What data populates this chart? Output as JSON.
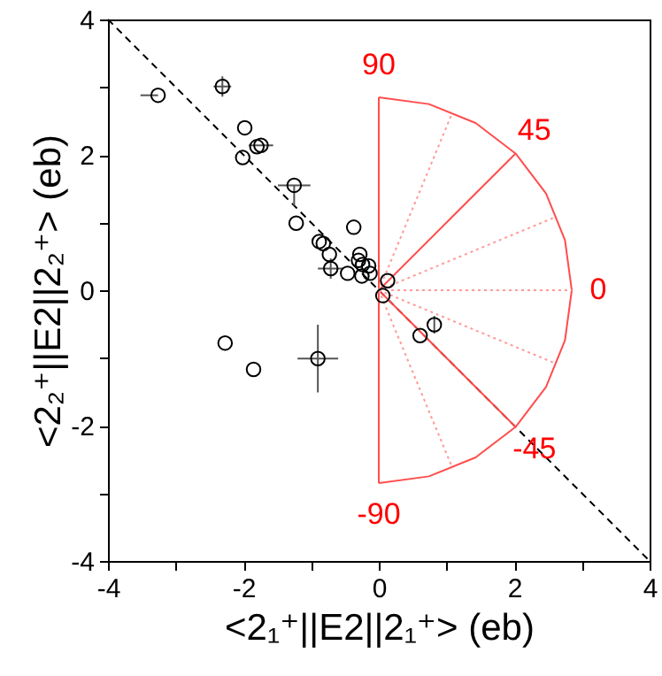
{
  "chart_data": {
    "type": "scatter",
    "xlabel": "<2₁⁺||E2||2₁⁺> (eb)",
    "ylabel": "<2₂⁺||E2||2₂⁺> (eb)",
    "xlim": [
      -4,
      4
    ],
    "ylim": [
      -4,
      4
    ],
    "xticks": [
      -4,
      {
        "value": -3,
        "label": null
      },
      -2,
      {
        "value": -1,
        "label": null
      },
      0,
      {
        "value": 1,
        "label": null
      },
      2,
      {
        "value": 3,
        "label": null
      },
      4
    ],
    "yticks": [
      -4,
      {
        "value": -3,
        "label": null
      },
      -2,
      {
        "value": -1,
        "label": null
      },
      0,
      {
        "value": 1,
        "label": null
      },
      2,
      {
        "value": 3,
        "label": null
      },
      4
    ],
    "annotations": [
      {
        "text": "90",
        "x": 0,
        "y": 2.85
      },
      {
        "text": "45",
        "x": 2.02,
        "y": 2.02
      },
      {
        "text": "0",
        "x": 2.85,
        "y": 0
      },
      {
        "text": "-45",
        "x": 2.02,
        "y": -2.02
      },
      {
        "text": "-90",
        "x": 0,
        "y": -2.85
      }
    ],
    "series": [
      {
        "type": "line",
        "color": "#000000",
        "line_style": "dashed",
        "x": [
          -4,
          4
        ],
        "values": [
          4,
          -4
        ]
      },
      {
        "type": "line",
        "color": "#ff4d4d",
        "line_style": "solid",
        "x": [
          0,
          0.74,
          1.43,
          2.02,
          2.47,
          2.75,
          2.85,
          2.75,
          2.47,
          2.02,
          1.43,
          0.74,
          0
        ],
        "values": [
          2.85,
          2.75,
          2.47,
          2.02,
          1.43,
          0.74,
          0,
          -0.74,
          -1.43,
          -2.02,
          -2.47,
          -2.75,
          -2.85
        ]
      },
      {
        "type": "line",
        "color": "#ff4d4d",
        "line_style": "solid",
        "x": [
          0,
          0
        ],
        "values": [
          2.85,
          -2.85
        ]
      },
      {
        "type": "line",
        "color": "#ff4d4d",
        "line_style": "solid",
        "x": [
          0,
          2.02
        ],
        "values": [
          0,
          2.02
        ]
      },
      {
        "type": "line",
        "color": "#ff4d4d",
        "line_style": "solid",
        "x": [
          0,
          2.02
        ],
        "values": [
          0,
          -2.02
        ]
      },
      {
        "type": "line",
        "color": "#ff9999",
        "line_style": "dotted",
        "x": [
          0,
          1.09
        ],
        "values": [
          0,
          2.63
        ]
      },
      {
        "type": "line",
        "color": "#ff9999",
        "line_style": "dotted",
        "x": [
          0,
          2.63
        ],
        "values": [
          0,
          1.09
        ]
      },
      {
        "type": "line",
        "color": "#ff9999",
        "line_style": "dotted",
        "x": [
          0,
          2.85
        ],
        "values": [
          0,
          0
        ]
      },
      {
        "type": "line",
        "color": "#ff9999",
        "line_style": "dotted",
        "x": [
          0,
          2.63
        ],
        "values": [
          0,
          -1.09
        ]
      },
      {
        "type": "line",
        "color": "#ff9999",
        "line_style": "dotted",
        "x": [
          0,
          1.09
        ],
        "values": [
          0,
          -2.63
        ]
      },
      {
        "color": "#000000",
        "marker": "circle",
        "x": [
          -3.26,
          -2.31,
          -1.98,
          -2.01,
          -1.74,
          -1.8,
          -1.25,
          -1.22,
          -0.88,
          -0.82,
          -0.73,
          -0.71,
          -0.37,
          -0.46,
          -0.28,
          -0.3,
          -0.24,
          -0.15,
          -0.25,
          -0.13,
          0.13,
          0.06,
          -2.27,
          -1.85,
          -0.9,
          0.82,
          0.61
        ],
        "values": [
          2.88,
          3.01,
          2.4,
          1.96,
          2.14,
          2.12,
          1.55,
          0.99,
          0.72,
          0.69,
          0.53,
          0.32,
          0.93,
          0.25,
          0.53,
          0.44,
          0.38,
          0.36,
          0.21,
          0.25,
          0.14,
          -0.08,
          -0.78,
          -1.17,
          -1.01,
          -0.51,
          -0.67
        ],
        "xerrors": [
          [
            -3.52,
            -3.26
          ],
          0.13,
          null,
          null,
          0.18,
          null,
          0.24,
          null,
          null,
          null,
          null,
          0.19,
          null,
          null,
          null,
          null,
          null,
          null,
          null,
          null,
          null,
          null,
          null,
          null,
          0.3,
          null,
          null
        ],
        "errors": [
          null,
          0.15,
          null,
          null,
          null,
          null,
          [
            1.25,
            1.55
          ],
          null,
          null,
          null,
          null,
          0.15,
          null,
          null,
          null,
          null,
          null,
          null,
          null,
          null,
          null,
          null,
          null,
          null,
          0.5,
          0.13,
          null
        ]
      }
    ]
  }
}
